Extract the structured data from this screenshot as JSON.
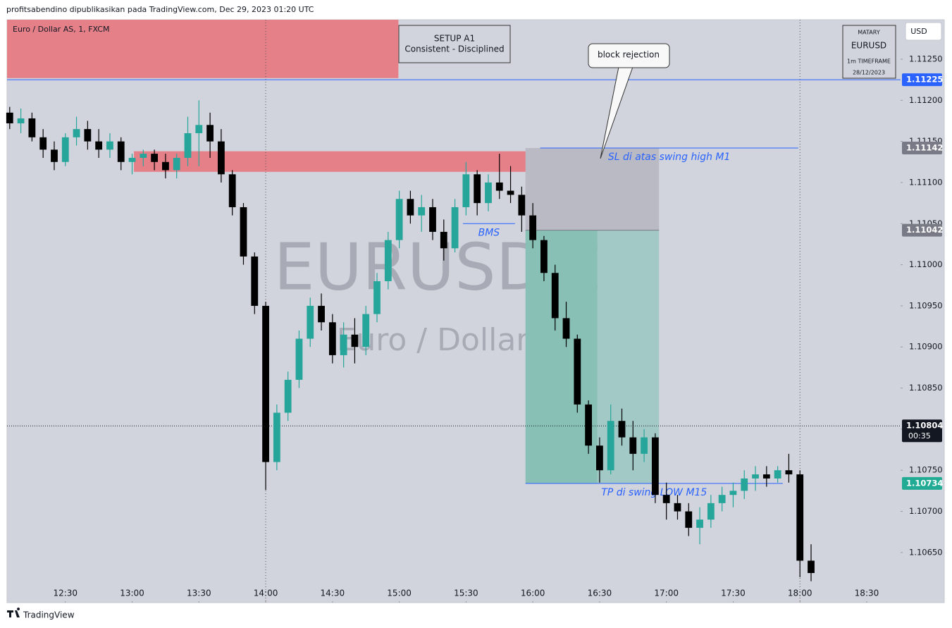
{
  "header": "profitsabendino dipublikasikan pada TradingView.com, Dec 29, 2023 01:20 UTC",
  "footer": "TradingView",
  "chart_data": {
    "type": "candlestick",
    "symbol": "Euro / Dollar AS, 1, FXCM",
    "watermark": [
      "EURUSD, 1",
      "Euro / Dollar AS"
    ],
    "currency": "USD",
    "up_color": "#26a69a",
    "down_color": "#000000",
    "x": [
      5,
      10,
      15,
      20,
      25,
      30,
      35,
      40,
      45,
      50,
      55,
      60,
      65,
      70,
      75,
      80,
      85,
      90,
      95,
      100,
      105,
      110,
      115,
      120,
      125,
      130,
      135,
      140,
      145,
      150,
      155,
      160,
      165,
      170,
      175,
      180,
      185,
      190,
      195,
      200,
      205,
      210,
      215,
      220,
      225,
      230,
      235,
      240,
      245,
      250,
      255,
      260,
      265,
      270,
      275,
      280,
      285,
      290,
      295,
      300,
      305,
      310,
      315,
      320,
      325,
      330,
      335,
      340,
      345,
      350,
      355,
      360,
      365
    ],
    "open": [
      1.11185,
      1.11172,
      1.11178,
      1.11155,
      1.1114,
      1.11125,
      1.11155,
      1.11165,
      1.1115,
      1.1114,
      1.1115,
      1.11125,
      1.1113,
      1.11135,
      1.11125,
      1.11115,
      1.1113,
      1.1116,
      1.1117,
      1.1115,
      1.1111,
      1.1107,
      1.1101,
      1.1095,
      1.1076,
      1.1082,
      1.1086,
      1.1091,
      1.1095,
      1.1093,
      1.1089,
      1.10915,
      1.109,
      1.1094,
      1.1098,
      1.1103,
      1.1108,
      1.1106,
      1.1107,
      1.1104,
      1.1102,
      1.1107,
      1.1111,
      1.11075,
      1.111,
      1.1109,
      1.11085,
      1.1106,
      1.1103,
      1.1099,
      1.10935,
      1.1091,
      1.1083,
      1.1078,
      1.1075,
      1.1081,
      1.1079,
      1.1077,
      1.1079,
      1.1072,
      1.1071,
      1.107,
      1.1068,
      1.1069,
      1.1071,
      1.1072,
      1.10725,
      1.1074,
      1.10745,
      1.1074,
      1.1075,
      1.10745,
      1.1064
    ],
    "high": [
      1.11192,
      1.1119,
      1.11185,
      1.11165,
      1.1115,
      1.1116,
      1.1118,
      1.11175,
      1.11165,
      1.1116,
      1.11155,
      1.11135,
      1.1114,
      1.1114,
      1.11135,
      1.11135,
      1.1118,
      1.112,
      1.11185,
      1.11165,
      1.11115,
      1.11075,
      1.11015,
      1.10955,
      1.1083,
      1.1087,
      1.1092,
      1.1096,
      1.10965,
      1.1094,
      1.1093,
      1.10935,
      1.1095,
      1.1099,
      1.1104,
      1.1109,
      1.1109,
      1.11085,
      1.1108,
      1.11055,
      1.1108,
      1.11125,
      1.11115,
      1.1111,
      1.11135,
      1.1112,
      1.11095,
      1.11075,
      1.11035,
      1.11,
      1.10955,
      1.10915,
      1.10835,
      1.1079,
      1.1083,
      1.10825,
      1.1081,
      1.108,
      1.10795,
      1.10735,
      1.1072,
      1.1071,
      1.10705,
      1.1072,
      1.1073,
      1.10735,
      1.1075,
      1.10755,
      1.10755,
      1.10755,
      1.1077,
      1.1075,
      1.1066
    ],
    "low": [
      1.11165,
      1.1116,
      1.1115,
      1.1113,
      1.11115,
      1.1112,
      1.11145,
      1.1114,
      1.1113,
      1.1113,
      1.11115,
      1.1111,
      1.1112,
      1.11115,
      1.11105,
      1.11105,
      1.1112,
      1.1112,
      1.1113,
      1.111,
      1.1106,
      1.11,
      1.1094,
      1.10726,
      1.1075,
      1.1081,
      1.1085,
      1.109,
      1.1092,
      1.1088,
      1.10875,
      1.1088,
      1.1089,
      1.1093,
      1.1097,
      1.1102,
      1.1105,
      1.1104,
      1.1103,
      1.11005,
      1.11015,
      1.1106,
      1.1106,
      1.11065,
      1.1108,
      1.11075,
      1.1104,
      1.1102,
      1.1098,
      1.1092,
      1.109,
      1.1082,
      1.1077,
      1.10735,
      1.10745,
      1.1078,
      1.1075,
      1.1076,
      1.1071,
      1.1069,
      1.1069,
      1.1067,
      1.1066,
      1.1068,
      1.107,
      1.10705,
      1.10715,
      1.10725,
      1.1073,
      1.10735,
      1.10735,
      1.1062,
      1.10615
    ],
    "close": [
      1.11172,
      1.11178,
      1.11155,
      1.1114,
      1.11125,
      1.11155,
      1.11165,
      1.1115,
      1.1114,
      1.1115,
      1.11125,
      1.1113,
      1.11135,
      1.11125,
      1.11115,
      1.1113,
      1.1116,
      1.1117,
      1.1115,
      1.1111,
      1.1107,
      1.1101,
      1.1095,
      1.1076,
      1.1082,
      1.1086,
      1.1091,
      1.1095,
      1.1093,
      1.1089,
      1.10915,
      1.109,
      1.1094,
      1.1098,
      1.1103,
      1.1108,
      1.1106,
      1.1107,
      1.1104,
      1.1102,
      1.1107,
      1.1111,
      1.11075,
      1.111,
      1.1109,
      1.11085,
      1.1106,
      1.1103,
      1.1099,
      1.10935,
      1.1091,
      1.1083,
      1.1078,
      1.1075,
      1.1081,
      1.1079,
      1.1077,
      1.1079,
      1.1072,
      1.1071,
      1.107,
      1.1068,
      1.1069,
      1.1071,
      1.1072,
      1.10725,
      1.1074,
      1.10745,
      1.1074,
      1.1075,
      1.10745,
      1.1064,
      1.10625
    ],
    "xlim": [
      3.8,
      405.2
    ],
    "xticks": [
      {
        "value": 30,
        "label": "12:30"
      },
      {
        "value": 60,
        "label": "13:00"
      },
      {
        "value": 90,
        "label": "13:30"
      },
      {
        "value": 120,
        "label": "14:00"
      },
      {
        "value": 150,
        "label": "14:30"
      },
      {
        "value": 180,
        "label": "15:00"
      },
      {
        "value": 210,
        "label": "15:30"
      },
      {
        "value": 240,
        "label": "16:00"
      },
      {
        "value": 270,
        "label": "16:30"
      },
      {
        "value": 300,
        "label": "17:00"
      },
      {
        "value": 330,
        "label": "17:30"
      },
      {
        "value": 360,
        "label": "18:00"
      },
      {
        "value": 390,
        "label": "18:30"
      }
    ],
    "ylim": [
      1.10589,
      1.11298
    ],
    "yticks": [
      {
        "value": 1.1065,
        "label": "1.10650"
      },
      {
        "value": 1.107,
        "label": "1.10700"
      },
      {
        "value": 1.1075,
        "label": "1.10750"
      },
      {
        "value": 1.108,
        "label": "1.10800"
      },
      {
        "value": 1.1085,
        "label": "1.10850"
      },
      {
        "value": 1.109,
        "label": "1.10900"
      },
      {
        "value": 1.1095,
        "label": "1.10950"
      },
      {
        "value": 1.11,
        "label": "1.11000"
      },
      {
        "value": 1.1105,
        "label": "1.11050"
      },
      {
        "value": 1.111,
        "label": "1.11100"
      },
      {
        "value": 1.1115,
        "label": "1.11150"
      },
      {
        "value": 1.112,
        "label": "1.11200"
      },
      {
        "value": 1.1125,
        "label": "1.11250"
      }
    ],
    "vlines": [
      120,
      360
    ],
    "zones": [
      {
        "x": [
          3.8,
          179.6
        ],
        "y": [
          1.11227,
          1.11298
        ],
        "color": "#e58089"
      },
      {
        "x": [
          60.8,
          284.4
        ],
        "y": [
          1.11113,
          1.11138
        ],
        "color": "#e58089"
      }
    ],
    "position": {
      "x": [
        236.7,
        296.7
      ],
      "split": 269,
      "stop": 1.11142,
      "entry": 1.11042,
      "target": 1.10734
    },
    "lines": [
      {
        "x": [
          243.3,
          359.2
        ],
        "y": 1.11142,
        "label": "SL di atas swing high M1"
      },
      {
        "x": [
          208.6,
          232
        ],
        "y": 1.1105,
        "label": "BMS"
      },
      {
        "x": [
          236.7,
          352.3
        ],
        "y": 1.10734,
        "label": "TP di swing LOW M15"
      }
    ],
    "price_labels": [
      {
        "value": 1.11225,
        "color": "#2962ff",
        "line": true
      },
      {
        "value": 1.11142,
        "color": "#787b86"
      },
      {
        "value": 1.11042,
        "color": "#787b86"
      },
      {
        "value": 1.10734,
        "color": "#22ab94"
      }
    ],
    "last_price": {
      "value": 1.10804,
      "countdown": "00:35"
    },
    "setup_box": [
      "SETUP A1",
      "Consistent - Disciplined"
    ],
    "callout": "block rejection",
    "info_box": [
      "MATARY",
      "EURUSD",
      "1m TIMEFRAME",
      "28/12/2023"
    ]
  }
}
